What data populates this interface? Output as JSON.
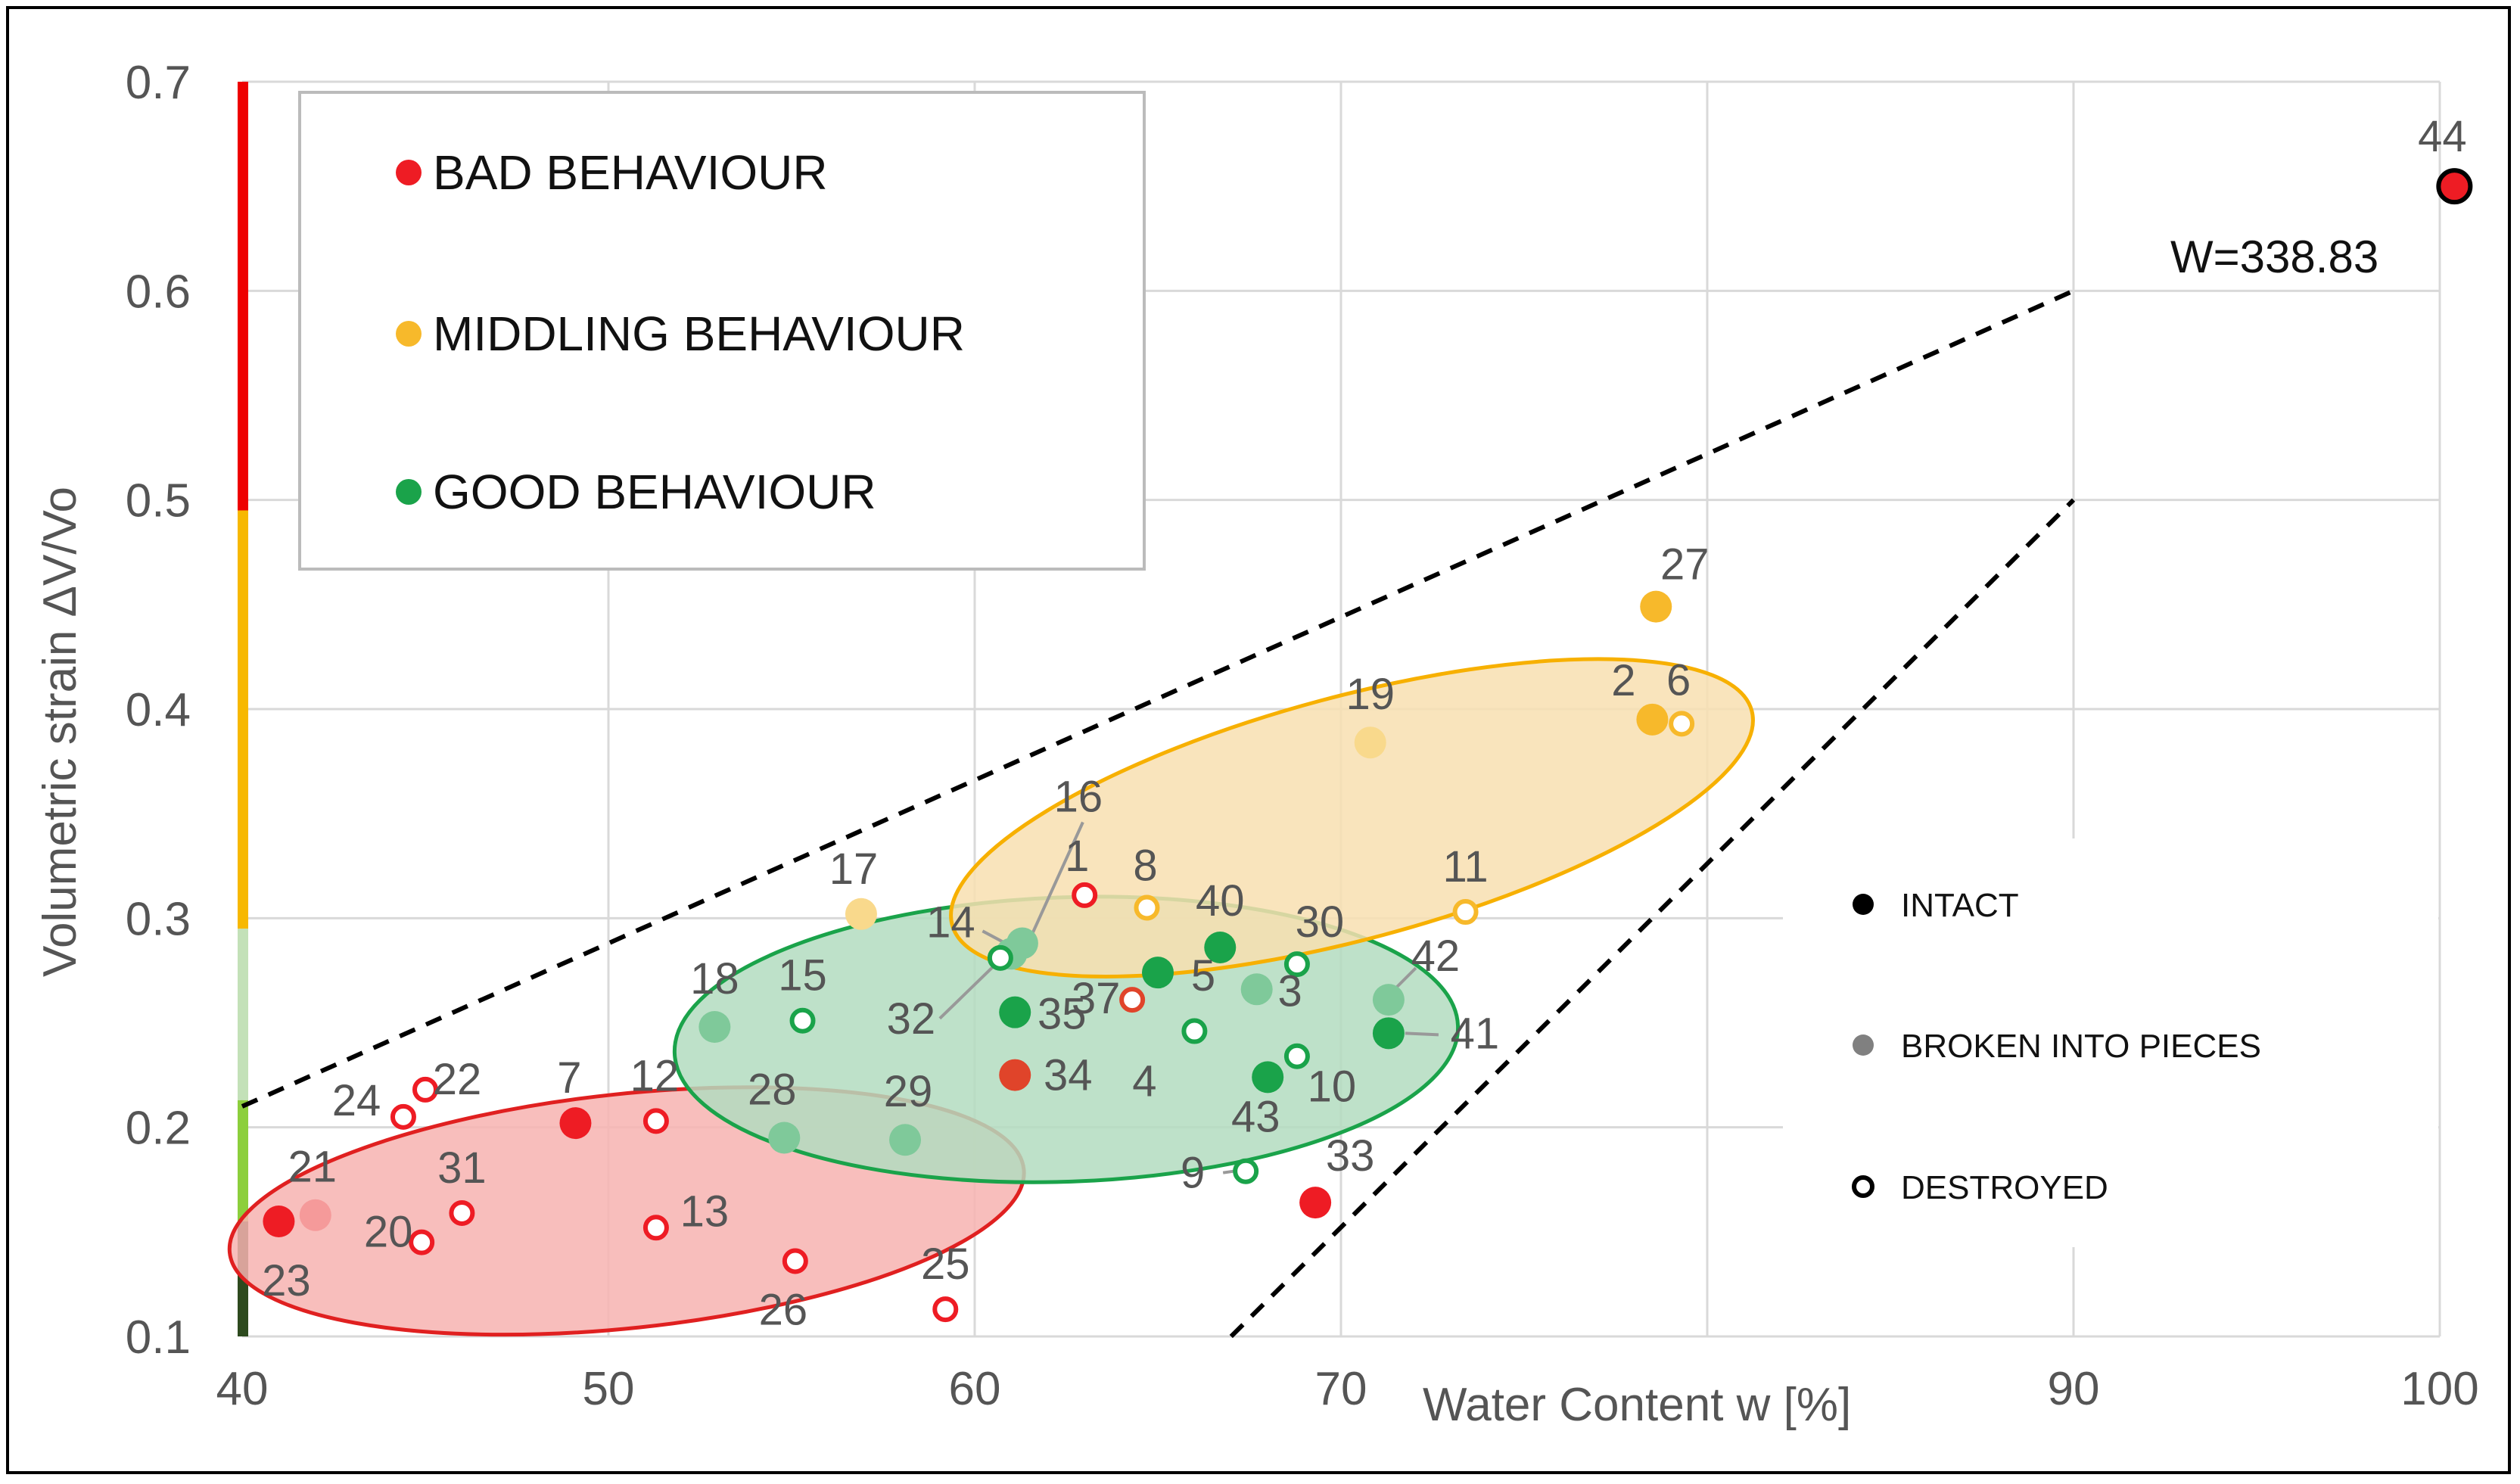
{
  "chart_data": {
    "type": "scatter",
    "title": "",
    "xlabel": "Water Content w [%]",
    "ylabel": "Volumetric strain ΔV/Vo",
    "xlim": [
      40,
      100
    ],
    "ylim": [
      0.1,
      0.7
    ],
    "x_ticks": [
      "40",
      "50",
      "60",
      "70",
      "90",
      "100"
    ],
    "y_ticks": [
      "0.1",
      "0.2",
      "0.3",
      "0.4",
      "0.5",
      "0.6",
      "0.7"
    ],
    "colors": {
      "bad": "#ee1c24",
      "bad_light": "#f59a9a",
      "middling": "#f7b92b",
      "middling_light": "#f9d98c",
      "good": "#1aa34a",
      "good_light": "#7fc99a",
      "bad_deep": "#e0442a"
    },
    "behaviour_legend": [
      {
        "label": "BAD BEHAVIOUR",
        "color": "#ee1c24"
      },
      {
        "label": "MIDDLING BEHAVIOUR",
        "color": "#f7b92b"
      },
      {
        "label": "GOOD BEHAVIOUR",
        "color": "#1aa34a"
      }
    ],
    "state_legend": [
      {
        "label": "INTACT",
        "style": "intact"
      },
      {
        "label": "BROKEN INTO PIECES",
        "style": "broken"
      },
      {
        "label": "DESTROYED",
        "style": "destroyed"
      }
    ],
    "y_scale_bar": [
      {
        "from": 0.1,
        "to": 0.155,
        "color": "#2d4a1e"
      },
      {
        "from": 0.155,
        "to": 0.213,
        "color": "#8ccf3c"
      },
      {
        "from": 0.213,
        "to": 0.295,
        "color": "#c3e1b8"
      },
      {
        "from": 0.295,
        "to": 0.495,
        "color": "#f7b800"
      },
      {
        "from": 0.495,
        "to": 0.7,
        "color": "#ee0000"
      }
    ],
    "envelope_lines": [
      {
        "from": [
          40,
          0.21
        ],
        "to": [
          90,
          0.6
        ]
      },
      {
        "from": [
          67,
          0.1
        ],
        "to": [
          90,
          0.5
        ]
      }
    ],
    "ellipses": [
      {
        "group": "bad",
        "center": [
          50.5,
          0.16
        ],
        "rx": 10.9,
        "ry": 0.056,
        "angle_deg": -6,
        "fill": "#f7b3b0",
        "stroke": "#e02020"
      },
      {
        "group": "good",
        "center": [
          62.5,
          0.242
        ],
        "rx": 10.7,
        "ry": 0.068,
        "angle_deg": -2,
        "fill": "#b3dcc0",
        "stroke": "#1aa34a"
      },
      {
        "group": "middling",
        "center": [
          70.3,
          0.348
        ],
        "rx": 11.3,
        "ry": 0.058,
        "angle_deg": -15,
        "fill": "#f8dfb0",
        "stroke": "#f7b000"
      }
    ],
    "points": [
      {
        "id": "1",
        "x": 63.0,
        "y": 0.311,
        "group": "bad",
        "state": "destroyed"
      },
      {
        "id": "2",
        "x": 78.5,
        "y": 0.395,
        "group": "middling",
        "state": "intact"
      },
      {
        "id": "3",
        "x": 67.7,
        "y": 0.266,
        "group": "good",
        "state": "broken"
      },
      {
        "id": "4",
        "x": 66.0,
        "y": 0.246,
        "group": "good",
        "state": "destroyed"
      },
      {
        "id": "5",
        "x": 65.0,
        "y": 0.274,
        "group": "good",
        "state": "intact"
      },
      {
        "id": "6",
        "x": 79.3,
        "y": 0.393,
        "group": "middling",
        "state": "destroyed"
      },
      {
        "id": "7",
        "x": 49.1,
        "y": 0.202,
        "group": "bad",
        "state": "intact"
      },
      {
        "id": "8",
        "x": 64.7,
        "y": 0.305,
        "group": "middling",
        "state": "destroyed"
      },
      {
        "id": "9",
        "x": 67.4,
        "y": 0.179,
        "group": "good",
        "state": "destroyed"
      },
      {
        "id": "10",
        "x": 68.8,
        "y": 0.234,
        "group": "good",
        "state": "destroyed"
      },
      {
        "id": "11",
        "x": 73.4,
        "y": 0.303,
        "group": "middling",
        "state": "destroyed"
      },
      {
        "id": "12",
        "x": 51.3,
        "y": 0.203,
        "group": "bad",
        "state": "destroyed"
      },
      {
        "id": "13",
        "x": 51.3,
        "y": 0.152,
        "group": "bad",
        "state": "destroyed"
      },
      {
        "id": "14",
        "x": 61.0,
        "y": 0.283,
        "group": "good",
        "state": "broken"
      },
      {
        "id": "15",
        "x": 55.3,
        "y": 0.251,
        "group": "good",
        "state": "destroyed"
      },
      {
        "id": "16",
        "x": 61.3,
        "y": 0.288,
        "group": "good",
        "state": "broken"
      },
      {
        "id": "17",
        "x": 56.9,
        "y": 0.302,
        "group": "middling",
        "state": "broken"
      },
      {
        "id": "18",
        "x": 52.9,
        "y": 0.248,
        "group": "good",
        "state": "broken"
      },
      {
        "id": "19",
        "x": 70.8,
        "y": 0.384,
        "group": "middling",
        "state": "broken"
      },
      {
        "id": "20",
        "x": 44.9,
        "y": 0.145,
        "group": "bad",
        "state": "destroyed"
      },
      {
        "id": "21",
        "x": 42.0,
        "y": 0.158,
        "group": "bad",
        "state": "broken"
      },
      {
        "id": "22",
        "x": 45.0,
        "y": 0.218,
        "group": "bad",
        "state": "destroyed"
      },
      {
        "id": "23",
        "x": 41.0,
        "y": 0.155,
        "group": "bad",
        "state": "intact"
      },
      {
        "id": "24",
        "x": 44.4,
        "y": 0.205,
        "group": "bad",
        "state": "destroyed"
      },
      {
        "id": "25",
        "x": 59.2,
        "y": 0.113,
        "group": "bad",
        "state": "destroyed"
      },
      {
        "id": "26",
        "x": 55.1,
        "y": 0.136,
        "group": "bad",
        "state": "destroyed"
      },
      {
        "id": "27",
        "x": 78.6,
        "y": 0.449,
        "group": "middling",
        "state": "intact"
      },
      {
        "id": "28",
        "x": 54.8,
        "y": 0.195,
        "group": "good",
        "state": "broken"
      },
      {
        "id": "29",
        "x": 58.1,
        "y": 0.194,
        "group": "good",
        "state": "broken"
      },
      {
        "id": "30",
        "x": 68.8,
        "y": 0.278,
        "group": "good",
        "state": "destroyed"
      },
      {
        "id": "31",
        "x": 46.0,
        "y": 0.159,
        "group": "bad",
        "state": "destroyed"
      },
      {
        "id": "32",
        "x": 60.7,
        "y": 0.281,
        "group": "good",
        "state": "destroyed"
      },
      {
        "id": "33",
        "x": 69.3,
        "y": 0.164,
        "group": "bad",
        "state": "intact"
      },
      {
        "id": "34",
        "x": 61.1,
        "y": 0.225,
        "group": "bad",
        "state": "intact"
      },
      {
        "id": "35",
        "x": 61.1,
        "y": 0.255,
        "group": "good",
        "state": "intact"
      },
      {
        "id": "37",
        "x": 64.3,
        "y": 0.261,
        "group": "bad",
        "state": "destroyed"
      },
      {
        "id": "40",
        "x": 66.7,
        "y": 0.286,
        "group": "good",
        "state": "intact"
      },
      {
        "id": "41",
        "x": 71.3,
        "y": 0.245,
        "group": "good",
        "state": "intact"
      },
      {
        "id": "42",
        "x": 71.3,
        "y": 0.261,
        "group": "good",
        "state": "broken"
      },
      {
        "id": "43",
        "x": 68.0,
        "y": 0.224,
        "group": "good",
        "state": "intact"
      },
      {
        "id": "44",
        "x": 100.4,
        "y": 0.65,
        "group": "bad",
        "state": "intact"
      }
    ],
    "annotation": "W=338.83"
  }
}
